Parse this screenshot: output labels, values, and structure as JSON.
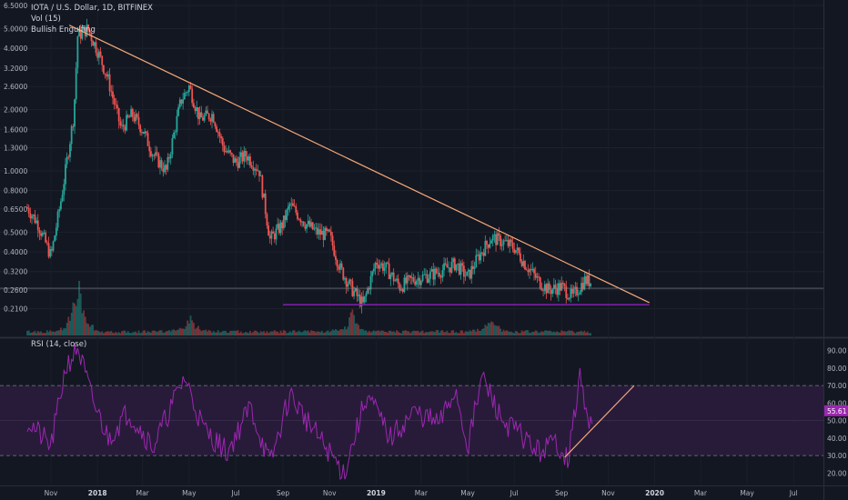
{
  "legend": {
    "symbol": "IOTA / U.S. Dollar, 1D, BITFINEX",
    "indicator1": "Vol (15)",
    "indicator2": "Bullish Engulfing"
  },
  "rsi_legend": "RSI (14, close)",
  "colors": {
    "background": "#131722",
    "up": "#26a69a",
    "down": "#ef5350",
    "trendline": "#f5a877",
    "support": "#7b1fa2",
    "rsi_line": "#9c27b0",
    "rsi_band": "#2a1b3d"
  },
  "chart_data": [
    {
      "type": "candlestick",
      "title": "IOTA / U.S. Dollar, 1D, BITFINEX",
      "y_scale": "log",
      "ylim": [
        0.185,
        6.5
      ],
      "y_ticks": [
        "6.5000",
        "5.0000",
        "4.0000",
        "3.2000",
        "2.6000",
        "2.0000",
        "1.6000",
        "1.3000",
        "1.0000",
        "0.8000",
        "0.6500",
        "0.5000",
        "0.4000",
        "0.3200",
        "0.2600",
        "0.2100"
      ],
      "x_ticks": [
        "Nov",
        "2018",
        "Mar",
        "May",
        "Jul",
        "Sep",
        "Nov",
        "2019",
        "Mar",
        "May",
        "Jul",
        "Sep",
        "Nov",
        "2020",
        "Mar",
        "May",
        "Jul"
      ],
      "bold_x_ticks": [
        "2018",
        "2019",
        "2020"
      ],
      "price_series": [
        {
          "date": "2017-10-01",
          "close": 0.66
        },
        {
          "date": "2017-10-15",
          "close": 0.55
        },
        {
          "date": "2017-11-01",
          "close": 0.38
        },
        {
          "date": "2017-11-15",
          "close": 0.75
        },
        {
          "date": "2017-12-01",
          "close": 1.9
        },
        {
          "date": "2017-12-06",
          "close": 4.6
        },
        {
          "date": "2017-12-19",
          "close": 5.0
        },
        {
          "date": "2018-01-01",
          "close": 3.9
        },
        {
          "date": "2018-01-15",
          "close": 2.8
        },
        {
          "date": "2018-02-01",
          "close": 1.6
        },
        {
          "date": "2018-02-15",
          "close": 1.9
        },
        {
          "date": "2018-03-01",
          "close": 1.6
        },
        {
          "date": "2018-03-15",
          "close": 1.2
        },
        {
          "date": "2018-04-01",
          "close": 1.0
        },
        {
          "date": "2018-04-20",
          "close": 2.2
        },
        {
          "date": "2018-05-01",
          "close": 2.6
        },
        {
          "date": "2018-05-15",
          "close": 1.8
        },
        {
          "date": "2018-06-01",
          "close": 1.9
        },
        {
          "date": "2018-06-15",
          "close": 1.3
        },
        {
          "date": "2018-07-01",
          "close": 1.1
        },
        {
          "date": "2018-07-15",
          "close": 1.2
        },
        {
          "date": "2018-08-01",
          "close": 1.0
        },
        {
          "date": "2018-08-15",
          "close": 0.46
        },
        {
          "date": "2018-09-01",
          "close": 0.55
        },
        {
          "date": "2018-09-10",
          "close": 0.68
        },
        {
          "date": "2018-10-01",
          "close": 0.55
        },
        {
          "date": "2018-10-15",
          "close": 0.5
        },
        {
          "date": "2018-11-01",
          "close": 0.48
        },
        {
          "date": "2018-11-15",
          "close": 0.33
        },
        {
          "date": "2018-12-01",
          "close": 0.26
        },
        {
          "date": "2018-12-15",
          "close": 0.22
        },
        {
          "date": "2019-01-01",
          "close": 0.36
        },
        {
          "date": "2019-01-15",
          "close": 0.33
        },
        {
          "date": "2019-02-01",
          "close": 0.27
        },
        {
          "date": "2019-02-15",
          "close": 0.29
        },
        {
          "date": "2019-03-01",
          "close": 0.3
        },
        {
          "date": "2019-03-15",
          "close": 0.31
        },
        {
          "date": "2019-04-01",
          "close": 0.33
        },
        {
          "date": "2019-04-15",
          "close": 0.35
        },
        {
          "date": "2019-05-01",
          "close": 0.3
        },
        {
          "date": "2019-05-15",
          "close": 0.38
        },
        {
          "date": "2019-06-01",
          "close": 0.47
        },
        {
          "date": "2019-06-15",
          "close": 0.45
        },
        {
          "date": "2019-07-01",
          "close": 0.42
        },
        {
          "date": "2019-07-15",
          "close": 0.35
        },
        {
          "date": "2019-08-01",
          "close": 0.29
        },
        {
          "date": "2019-08-15",
          "close": 0.26
        },
        {
          "date": "2019-09-01",
          "close": 0.27
        },
        {
          "date": "2019-09-15",
          "close": 0.24
        },
        {
          "date": "2019-10-01",
          "close": 0.29
        },
        {
          "date": "2019-10-10",
          "close": 0.285
        }
      ],
      "trendline": {
        "from": {
          "date": "2017-11-25",
          "price": 5.2
        },
        "to": {
          "date": "2019-12-25",
          "price": 0.225
        }
      },
      "support_line": {
        "from": {
          "date": "2018-09-01",
          "price": 0.22
        },
        "to": {
          "date": "2019-12-25",
          "price": 0.22
        }
      },
      "level_line": {
        "price": 0.265
      },
      "volume_spikes": [
        {
          "date": "2017-12-06",
          "relative": 0.9
        },
        {
          "date": "2018-05-01",
          "relative": 0.25
        },
        {
          "date": "2018-12-01",
          "relative": 0.3
        },
        {
          "date": "2019-06-01",
          "relative": 0.2
        }
      ]
    },
    {
      "type": "line",
      "title": "RSI (14, close)",
      "ylim": [
        15,
        95
      ],
      "y_ticks": [
        "90.00",
        "80.00",
        "70.00",
        "60.00",
        "50.00",
        "40.00",
        "30.00",
        "20.00"
      ],
      "overbought": 70,
      "oversold": 30,
      "last_value": "55.61",
      "series": [
        {
          "date": "2017-10-01",
          "rsi": 50
        },
        {
          "date": "2017-11-01",
          "rsi": 35
        },
        {
          "date": "2017-11-20",
          "rsi": 80
        },
        {
          "date": "2017-12-06",
          "rsi": 92
        },
        {
          "date": "2017-12-25",
          "rsi": 62
        },
        {
          "date": "2018-01-15",
          "rsi": 40
        },
        {
          "date": "2018-02-10",
          "rsi": 55
        },
        {
          "date": "2018-03-15",
          "rsi": 35
        },
        {
          "date": "2018-04-25",
          "rsi": 75
        },
        {
          "date": "2018-05-20",
          "rsi": 45
        },
        {
          "date": "2018-06-20",
          "rsi": 32
        },
        {
          "date": "2018-07-20",
          "rsi": 58
        },
        {
          "date": "2018-08-15",
          "rsi": 25
        },
        {
          "date": "2018-09-10",
          "rsi": 65
        },
        {
          "date": "2018-10-10",
          "rsi": 45
        },
        {
          "date": "2018-11-20",
          "rsi": 20
        },
        {
          "date": "2018-12-20",
          "rsi": 65
        },
        {
          "date": "2019-01-20",
          "rsi": 40
        },
        {
          "date": "2019-02-20",
          "rsi": 55
        },
        {
          "date": "2019-03-25",
          "rsi": 48
        },
        {
          "date": "2019-04-15",
          "rsi": 68
        },
        {
          "date": "2019-05-01",
          "rsi": 35
        },
        {
          "date": "2019-05-20",
          "rsi": 75
        },
        {
          "date": "2019-06-15",
          "rsi": 50
        },
        {
          "date": "2019-07-10",
          "rsi": 42
        },
        {
          "date": "2019-08-01",
          "rsi": 32
        },
        {
          "date": "2019-08-25",
          "rsi": 38
        },
        {
          "date": "2019-09-10",
          "rsi": 28
        },
        {
          "date": "2019-09-25",
          "rsi": 76
        },
        {
          "date": "2019-10-05",
          "rsi": 48
        },
        {
          "date": "2019-10-12",
          "rsi": 56
        }
      ],
      "trendline": {
        "from": {
          "date": "2019-09-05",
          "rsi": 29
        },
        "to": {
          "date": "2019-12-05",
          "rsi": 70
        }
      }
    }
  ]
}
